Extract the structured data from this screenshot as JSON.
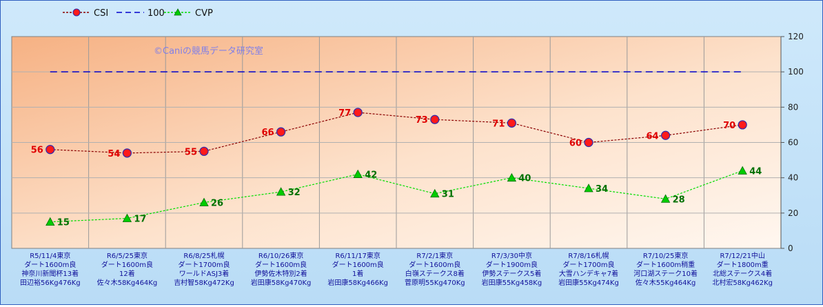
{
  "chart_data": {
    "type": "line",
    "watermark": "©Caniの競馬データ研究室",
    "legend_position": "top-left",
    "y_axis_position": "right",
    "ylim": [
      0,
      120
    ],
    "yticks": [
      0,
      20,
      40,
      60,
      80,
      100,
      120
    ],
    "grid": true,
    "categories": [
      [
        "R5/11/4東京",
        "ダート1600m良",
        "神奈川新聞杯13着",
        "田辺裕56Kg476Kg"
      ],
      [
        "R6/5/25東京",
        "ダート1600m良",
        "12着",
        "佐々木58Kg464Kg"
      ],
      [
        "R6/8/25札幌",
        "ダート1700m良",
        "ワールドASJ3着",
        "吉村智58Kg472Kg"
      ],
      [
        "R6/10/26東京",
        "ダート1600m良",
        "伊勢佐木特別2着",
        "岩田康58Kg470Kg"
      ],
      [
        "R6/11/17東京",
        "ダート1600m良",
        "1着",
        "岩田康58Kg466Kg"
      ],
      [
        "R7/2/1東京",
        "ダート1600m良",
        "白嶺ステークス8着",
        "菅原明55Kg470Kg"
      ],
      [
        "R7/3/30中京",
        "ダート1900m良",
        "伊勢ステークス5着",
        "岩田康55Kg458Kg"
      ],
      [
        "R7/8/16札幌",
        "ダート1700m良",
        "大雪ハンデキャ7着",
        "岩田康55Kg474Kg"
      ],
      [
        "R7/10/25東京",
        "ダート1600m稍重",
        "河口湖ステーク10着",
        "佐々木55Kg464Kg"
      ],
      [
        "R7/12/21中山",
        "ダート1800m重",
        "北総ステークス4着",
        "北村宏58Kg462Kg"
      ]
    ],
    "series": [
      {
        "name": "CSI",
        "values": [
          56,
          54,
          55,
          66,
          77,
          73,
          71,
          60,
          64,
          70
        ],
        "color": "#8b0000",
        "marker": "circle",
        "label_color": "#e00000"
      },
      {
        "name": "100",
        "values": [
          100,
          100,
          100,
          100,
          100,
          100,
          100,
          100,
          100,
          100
        ],
        "color": "#0000cc",
        "marker": "none"
      },
      {
        "name": "CVP",
        "values": [
          15,
          17,
          26,
          32,
          42,
          31,
          40,
          34,
          28,
          44
        ],
        "color": "#00dd00",
        "marker": "triangle",
        "label_color": "#007000"
      }
    ]
  }
}
